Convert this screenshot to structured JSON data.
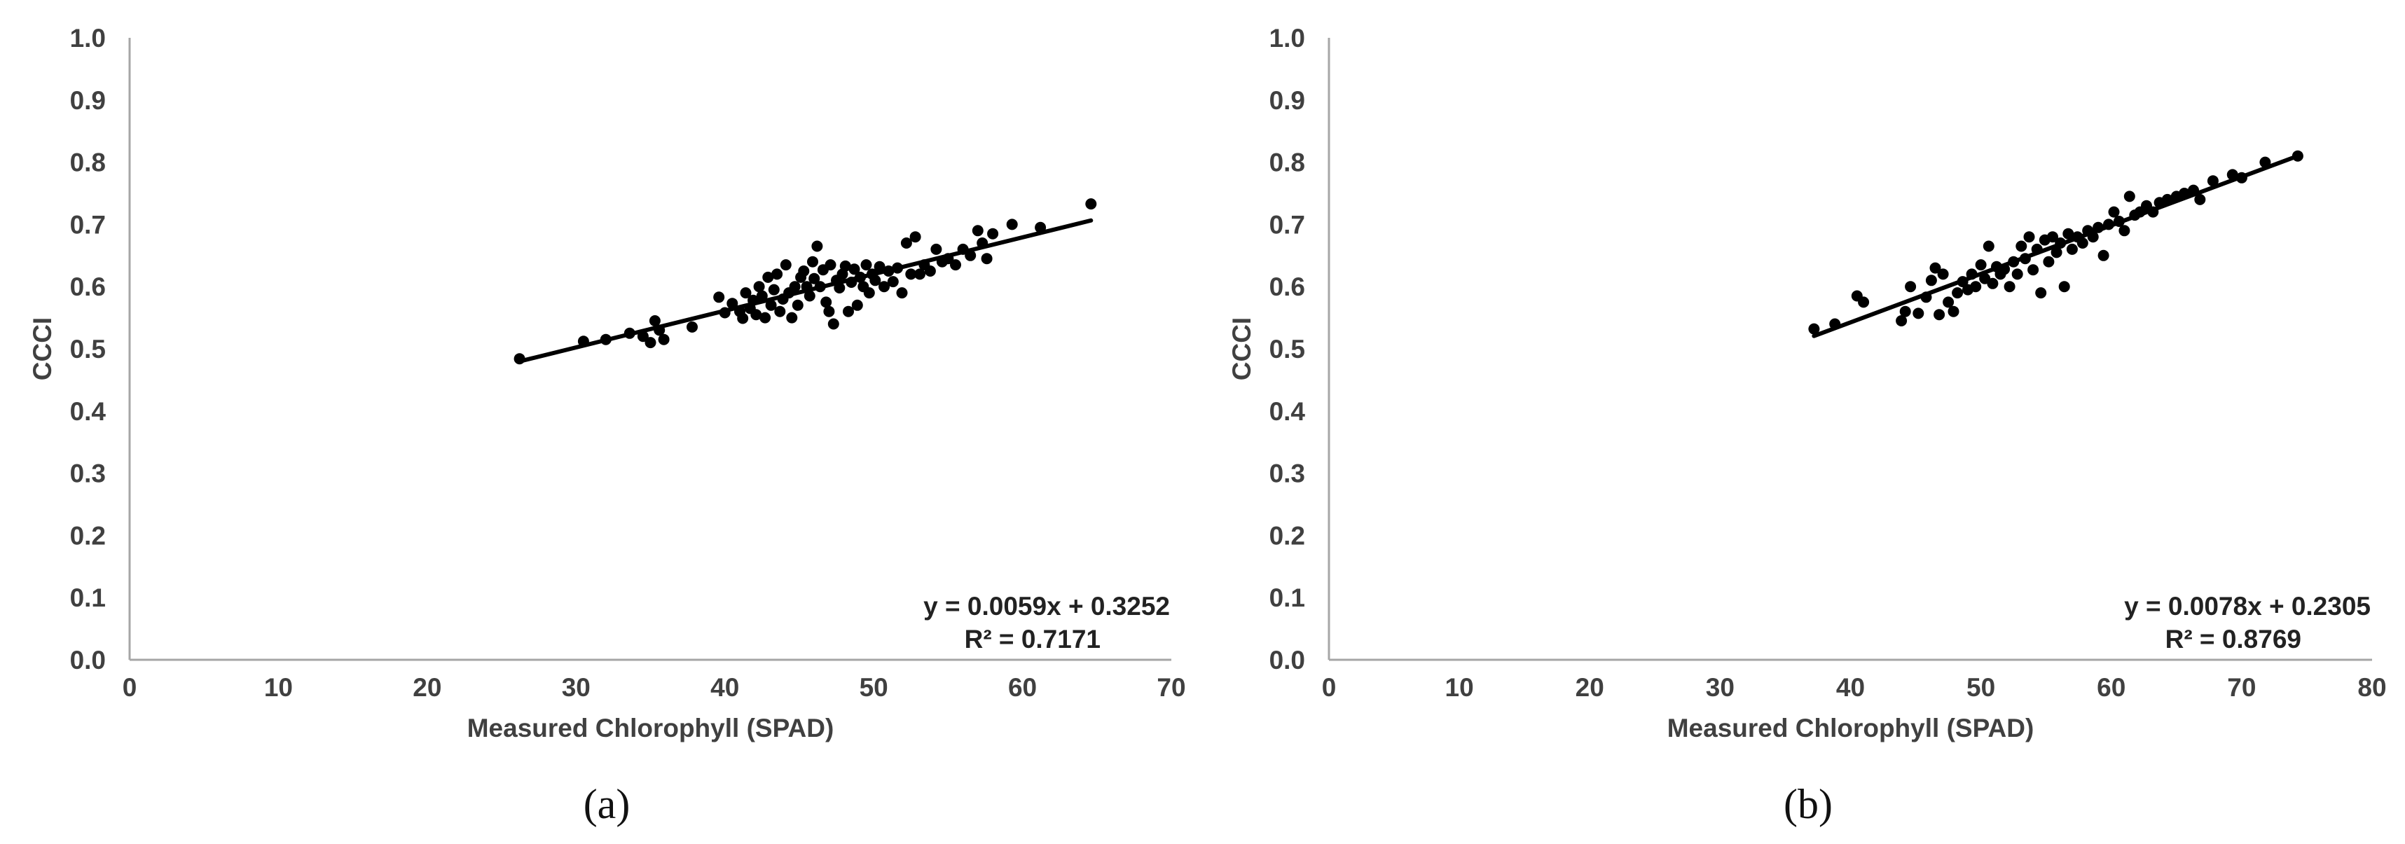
{
  "chart_data": [
    {
      "type": "scatter",
      "panel_label": "(a)",
      "xlabel": "Measured Chlorophyll (SPAD)",
      "ylabel": "CCCI",
      "xlim": [
        0,
        70
      ],
      "ylim": [
        0,
        1.0
      ],
      "x_ticks": [
        "0",
        "10",
        "20",
        "30",
        "40",
        "50",
        "60",
        "70"
      ],
      "y_ticks": [
        "0.0",
        "0.1",
        "0.2",
        "0.3",
        "0.4",
        "0.5",
        "0.6",
        "0.7",
        "0.8",
        "0.9",
        "1.0"
      ],
      "grid": false,
      "trendline": {
        "slope": 0.0059,
        "intercept": 0.3252,
        "x_range": [
          26.2,
          64.6
        ]
      },
      "equation": "y = 0.0059x + 0.3252",
      "r_squared": "R² = 0.7171",
      "marker_color": "#000000",
      "points": [
        [
          26.2,
          0.484
        ],
        [
          30.5,
          0.512
        ],
        [
          32.0,
          0.515
        ],
        [
          33.6,
          0.525
        ],
        [
          34.5,
          0.52
        ],
        [
          35.0,
          0.51
        ],
        [
          35.3,
          0.545
        ],
        [
          35.6,
          0.53
        ],
        [
          35.9,
          0.515
        ],
        [
          37.8,
          0.535
        ],
        [
          39.6,
          0.583
        ],
        [
          40.0,
          0.558
        ],
        [
          40.5,
          0.573
        ],
        [
          41.0,
          0.56
        ],
        [
          41.2,
          0.549
        ],
        [
          41.4,
          0.59
        ],
        [
          41.7,
          0.565
        ],
        [
          41.9,
          0.578
        ],
        [
          42.1,
          0.555
        ],
        [
          42.3,
          0.6
        ],
        [
          42.5,
          0.585
        ],
        [
          42.7,
          0.55
        ],
        [
          42.9,
          0.615
        ],
        [
          43.1,
          0.57
        ],
        [
          43.3,
          0.595
        ],
        [
          43.5,
          0.62
        ],
        [
          43.7,
          0.56
        ],
        [
          43.9,
          0.58
        ],
        [
          44.1,
          0.635
        ],
        [
          44.3,
          0.59
        ],
        [
          44.5,
          0.55
        ],
        [
          44.7,
          0.6
        ],
        [
          44.9,
          0.57
        ],
        [
          45.1,
          0.615
        ],
        [
          45.3,
          0.625
        ],
        [
          45.5,
          0.6
        ],
        [
          45.7,
          0.585
        ],
        [
          45.9,
          0.64
        ],
        [
          46.0,
          0.613
        ],
        [
          46.2,
          0.665
        ],
        [
          46.4,
          0.6
        ],
        [
          46.6,
          0.627
        ],
        [
          46.8,
          0.575
        ],
        [
          47.0,
          0.56
        ],
        [
          47.1,
          0.635
        ],
        [
          47.3,
          0.54
        ],
        [
          47.5,
          0.61
        ],
        [
          47.7,
          0.598
        ],
        [
          47.9,
          0.62
        ],
        [
          48.1,
          0.633
        ],
        [
          48.3,
          0.56
        ],
        [
          48.5,
          0.607
        ],
        [
          48.7,
          0.628
        ],
        [
          48.9,
          0.57
        ],
        [
          49.1,
          0.615
        ],
        [
          49.3,
          0.6
        ],
        [
          49.5,
          0.635
        ],
        [
          49.7,
          0.59
        ],
        [
          49.9,
          0.62
        ],
        [
          50.1,
          0.61
        ],
        [
          50.4,
          0.632
        ],
        [
          50.7,
          0.6
        ],
        [
          51.0,
          0.625
        ],
        [
          51.3,
          0.608
        ],
        [
          51.6,
          0.63
        ],
        [
          51.9,
          0.59
        ],
        [
          52.2,
          0.67
        ],
        [
          52.5,
          0.62
        ],
        [
          52.8,
          0.68
        ],
        [
          53.1,
          0.62
        ],
        [
          53.4,
          0.635
        ],
        [
          53.8,
          0.625
        ],
        [
          54.2,
          0.66
        ],
        [
          54.6,
          0.64
        ],
        [
          55.0,
          0.645
        ],
        [
          55.5,
          0.635
        ],
        [
          56.0,
          0.66
        ],
        [
          56.5,
          0.65
        ],
        [
          57.0,
          0.69
        ],
        [
          57.3,
          0.67
        ],
        [
          57.6,
          0.645
        ],
        [
          58.0,
          0.685
        ],
        [
          59.3,
          0.7
        ],
        [
          61.2,
          0.695
        ],
        [
          64.6,
          0.733
        ]
      ]
    },
    {
      "type": "scatter",
      "panel_label": "(b)",
      "xlabel": "Measured Chlorophyll (SPAD)",
      "ylabel": "CCCI",
      "xlim": [
        0,
        80
      ],
      "ylim": [
        0,
        1.0
      ],
      "x_ticks": [
        "0",
        "10",
        "20",
        "30",
        "40",
        "50",
        "60",
        "70",
        "80"
      ],
      "y_ticks": [
        "0.0",
        "0.1",
        "0.2",
        "0.3",
        "0.4",
        "0.5",
        "0.6",
        "0.7",
        "0.8",
        "0.9",
        "1.0"
      ],
      "grid": false,
      "trendline": {
        "slope": 0.0078,
        "intercept": 0.2305,
        "x_range": [
          37.2,
          74.3
        ]
      },
      "equation": "y = 0.0078x + 0.2305",
      "r_squared": "R² = 0.8769",
      "marker_color": "#000000",
      "points": [
        [
          37.2,
          0.532
        ],
        [
          38.8,
          0.54
        ],
        [
          40.5,
          0.585
        ],
        [
          41.0,
          0.575
        ],
        [
          43.9,
          0.545
        ],
        [
          44.2,
          0.56
        ],
        [
          44.6,
          0.6
        ],
        [
          45.2,
          0.557
        ],
        [
          45.8,
          0.583
        ],
        [
          46.2,
          0.61
        ],
        [
          46.5,
          0.63
        ],
        [
          46.8,
          0.555
        ],
        [
          47.1,
          0.62
        ],
        [
          47.5,
          0.575
        ],
        [
          47.9,
          0.56
        ],
        [
          48.2,
          0.59
        ],
        [
          48.6,
          0.608
        ],
        [
          49.0,
          0.595
        ],
        [
          49.3,
          0.62
        ],
        [
          49.6,
          0.6
        ],
        [
          50.0,
          0.635
        ],
        [
          50.3,
          0.613
        ],
        [
          50.6,
          0.665
        ],
        [
          50.9,
          0.605
        ],
        [
          51.2,
          0.632
        ],
        [
          51.5,
          0.62
        ],
        [
          51.8,
          0.628
        ],
        [
          52.2,
          0.6
        ],
        [
          52.5,
          0.64
        ],
        [
          52.8,
          0.62
        ],
        [
          53.1,
          0.665
        ],
        [
          53.4,
          0.645
        ],
        [
          53.7,
          0.68
        ],
        [
          54.0,
          0.627
        ],
        [
          54.3,
          0.66
        ],
        [
          54.6,
          0.59
        ],
        [
          54.9,
          0.675
        ],
        [
          55.2,
          0.64
        ],
        [
          55.5,
          0.68
        ],
        [
          55.8,
          0.655
        ],
        [
          56.1,
          0.67
        ],
        [
          56.4,
          0.6
        ],
        [
          56.7,
          0.685
        ],
        [
          57.0,
          0.66
        ],
        [
          57.4,
          0.68
        ],
        [
          57.8,
          0.67
        ],
        [
          58.2,
          0.69
        ],
        [
          58.6,
          0.68
        ],
        [
          59.0,
          0.695
        ],
        [
          59.4,
          0.65
        ],
        [
          59.8,
          0.7
        ],
        [
          60.2,
          0.72
        ],
        [
          60.6,
          0.705
        ],
        [
          61.0,
          0.69
        ],
        [
          61.4,
          0.745
        ],
        [
          61.8,
          0.715
        ],
        [
          62.2,
          0.72
        ],
        [
          62.7,
          0.73
        ],
        [
          63.2,
          0.72
        ],
        [
          63.7,
          0.735
        ],
        [
          64.3,
          0.74
        ],
        [
          65.0,
          0.745
        ],
        [
          65.6,
          0.75
        ],
        [
          66.3,
          0.755
        ],
        [
          66.8,
          0.74
        ],
        [
          67.8,
          0.77
        ],
        [
          69.3,
          0.78
        ],
        [
          70.0,
          0.775
        ],
        [
          71.8,
          0.8
        ],
        [
          74.3,
          0.81
        ]
      ]
    }
  ]
}
